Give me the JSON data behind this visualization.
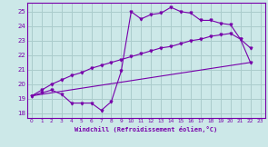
{
  "xlabel": "Windchill (Refroidissement éolien,°C)",
  "bg_color": "#cce8e8",
  "grid_color": "#aacccc",
  "line_color": "#7700aa",
  "xlim": [
    -0.5,
    23.5
  ],
  "ylim": [
    17.7,
    25.6
  ],
  "yticks": [
    18,
    19,
    20,
    21,
    22,
    23,
    24,
    25
  ],
  "xticks": [
    0,
    1,
    2,
    3,
    4,
    5,
    6,
    7,
    8,
    9,
    10,
    11,
    12,
    13,
    14,
    15,
    16,
    17,
    18,
    19,
    20,
    21,
    22,
    23
  ],
  "line1_x": [
    0,
    1,
    2,
    3,
    4,
    5,
    6,
    7,
    8,
    9,
    10,
    11,
    12,
    13,
    14,
    15,
    16,
    17,
    18,
    19,
    20,
    21,
    22
  ],
  "line1_y": [
    19.2,
    19.4,
    19.6,
    19.3,
    18.7,
    18.7,
    18.7,
    18.2,
    18.8,
    20.9,
    25.0,
    24.5,
    24.8,
    24.9,
    25.3,
    25.0,
    24.9,
    24.4,
    24.4,
    24.2,
    24.1,
    23.1,
    22.5
  ],
  "line2_x": [
    0,
    22
  ],
  "line2_y": [
    19.2,
    21.5
  ],
  "line3_x": [
    0,
    1,
    2,
    3,
    4,
    5,
    6,
    7,
    8,
    9,
    10,
    11,
    12,
    13,
    14,
    15,
    16,
    17,
    18,
    19,
    20,
    21,
    22
  ],
  "line3_y": [
    19.2,
    19.6,
    20.0,
    20.3,
    20.6,
    20.8,
    21.1,
    21.3,
    21.5,
    21.7,
    21.9,
    22.1,
    22.3,
    22.5,
    22.6,
    22.8,
    23.0,
    23.1,
    23.3,
    23.4,
    23.5,
    23.1,
    21.5
  ]
}
